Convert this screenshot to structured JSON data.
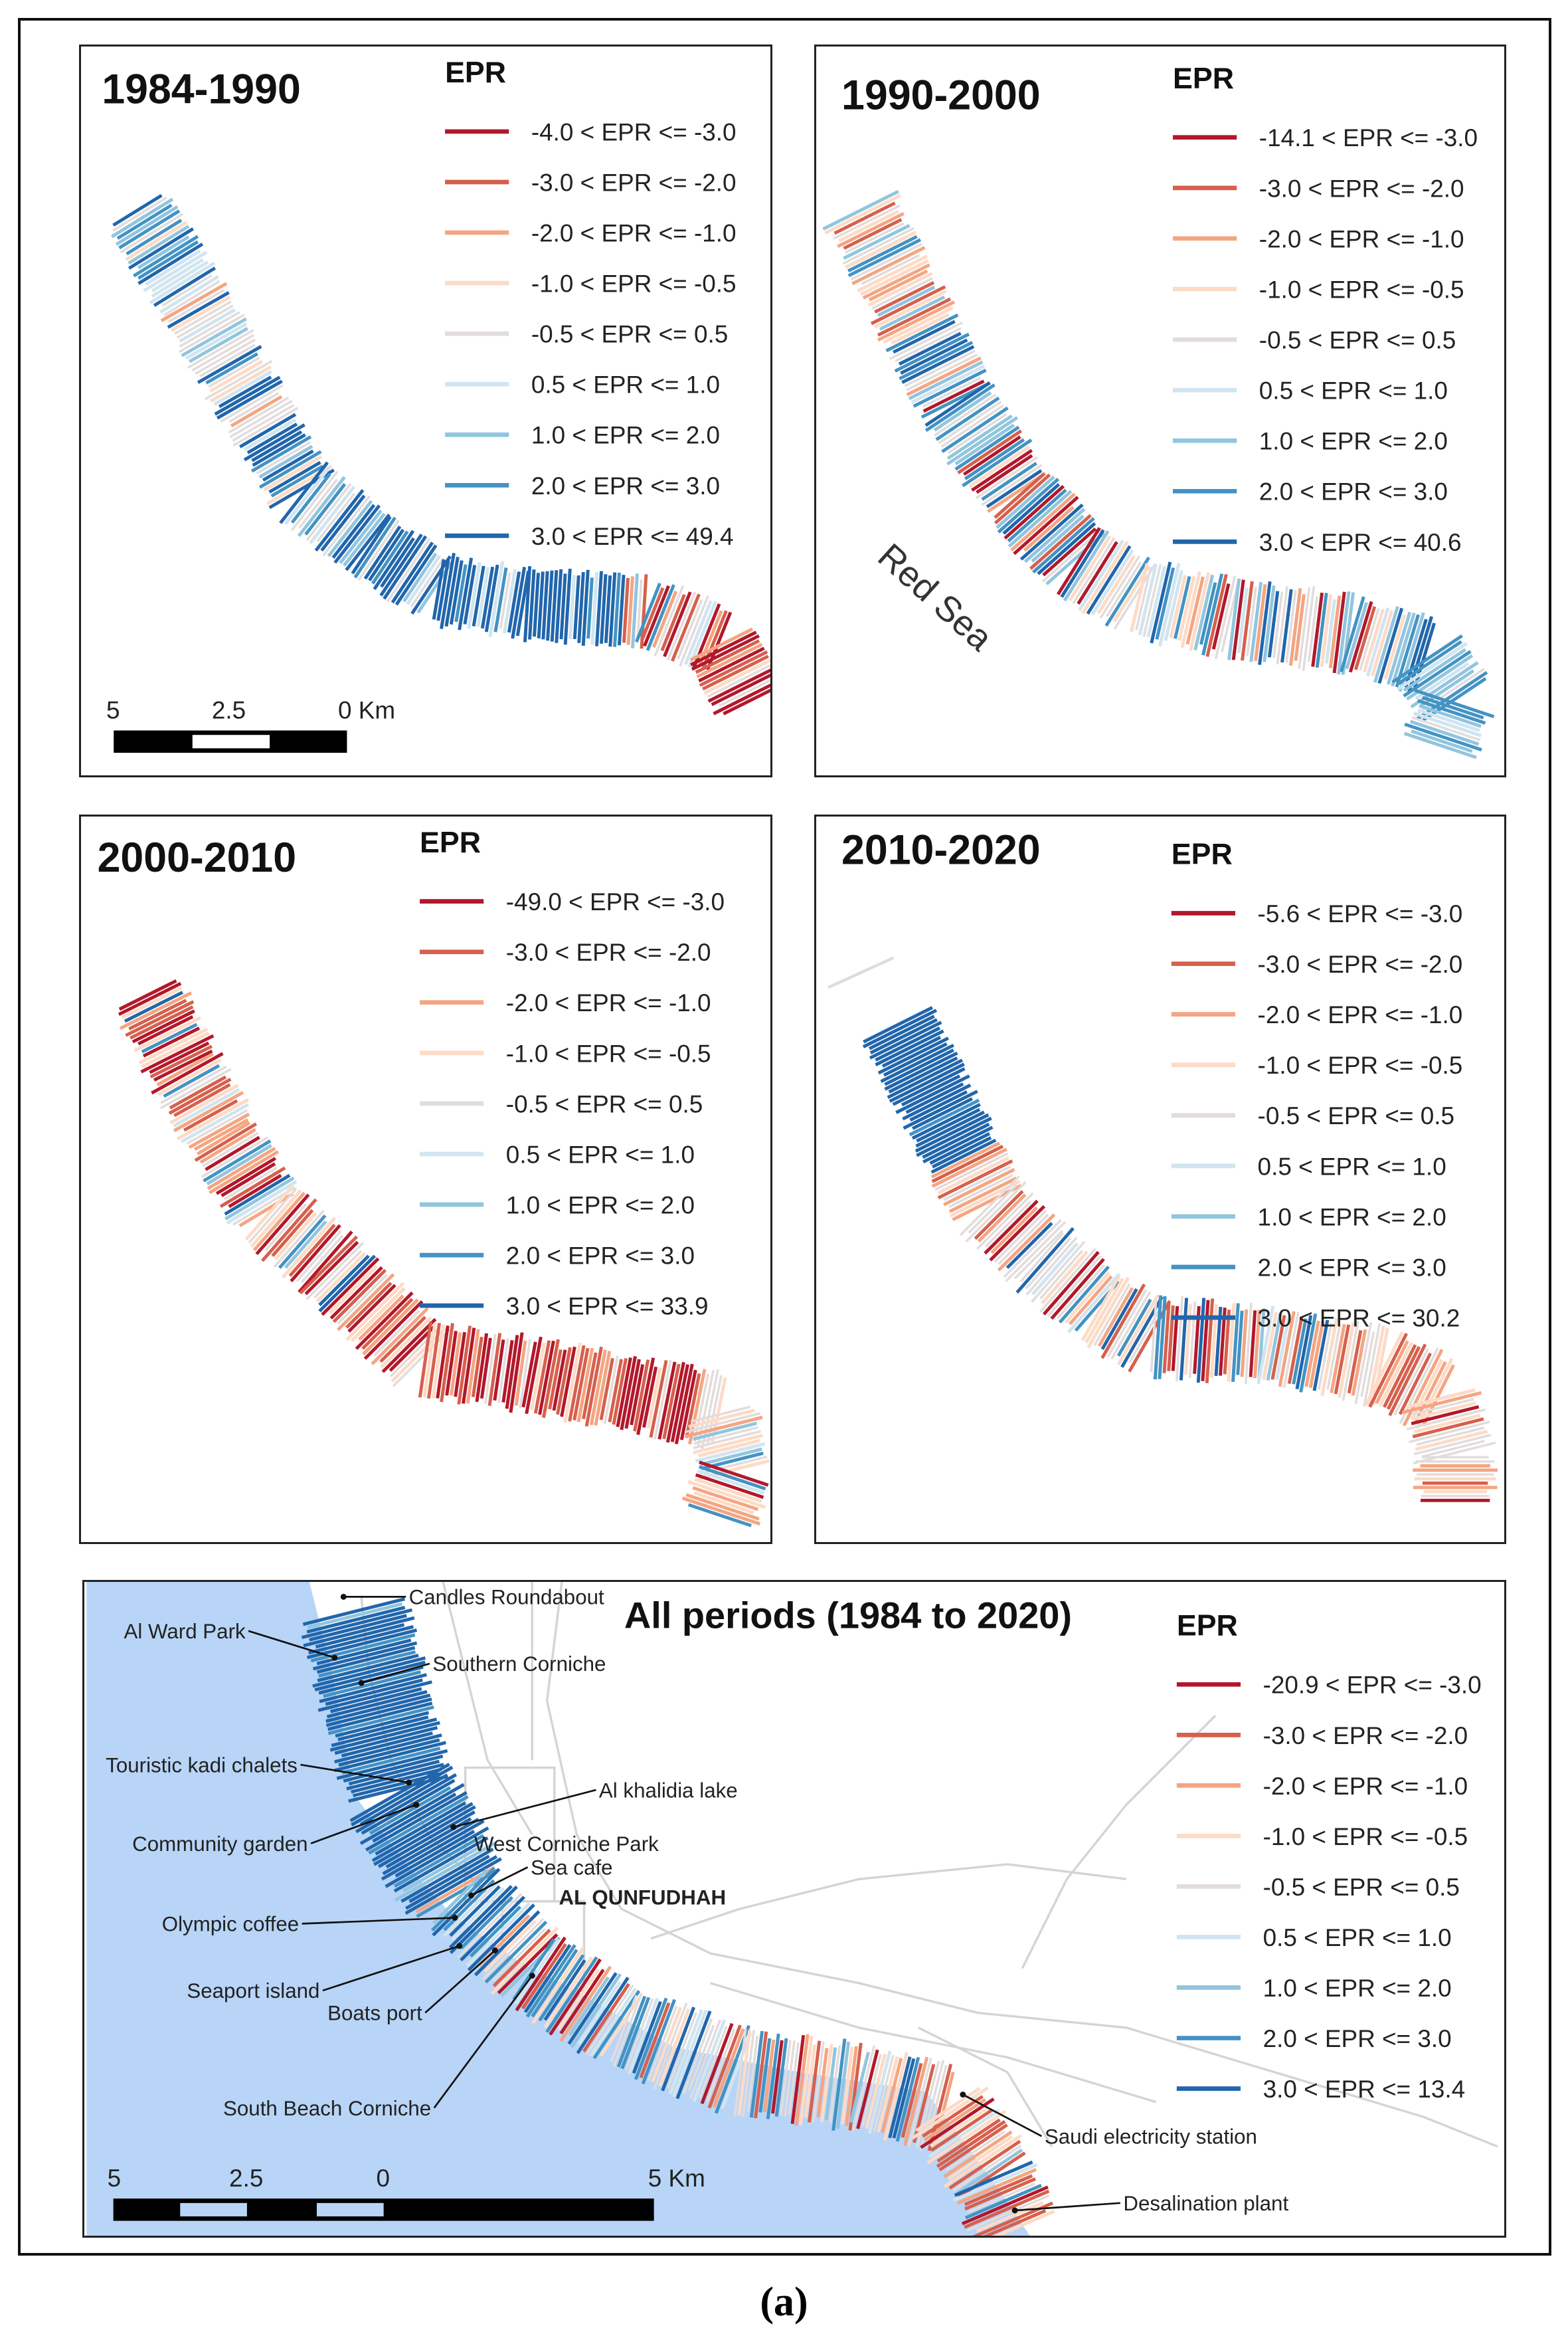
{
  "legend_colors": [
    "#b2182b",
    "#d6604d",
    "#f4a582",
    "#fddbc7",
    "#e2dcdc",
    "#d1e5f0",
    "#92c5de",
    "#4393c3",
    "#2166ac"
  ],
  "legend_title": "EPR",
  "panels": [
    {
      "title": "1984-1990",
      "legend": [
        "-4.0 < EPR <= -3.0",
        "-3.0 < EPR <= -2.0",
        "-2.0 < EPR <= -1.0",
        "-1.0 < EPR <= -0.5",
        "-0.5 < EPR <= 0.5",
        "0.5 < EPR <= 1.0",
        "1.0 < EPR <= 2.0",
        "2.0 < EPR <= 3.0",
        "3.0 < EPR <= 49.4"
      ],
      "scale": {
        "labels": [
          "5",
          "2.5",
          "0 Km"
        ]
      }
    },
    {
      "title": "1990-2000",
      "legend": [
        "-14.1 < EPR <= -3.0",
        "-3.0 < EPR <= -2.0",
        "-2.0 < EPR <= -1.0",
        "-1.0 < EPR <= -0.5",
        "-0.5 < EPR <= 0.5",
        "0.5 < EPR <= 1.0",
        "1.0 < EPR <= 2.0",
        "2.0 < EPR <= 3.0",
        "3.0 < EPR <= 40.6"
      ],
      "sea_label": "Red Sea"
    },
    {
      "title": "2000-2010",
      "legend": [
        "-49.0 < EPR <= -3.0",
        "-3.0 < EPR <= -2.0",
        "-2.0 < EPR <= -1.0",
        "-1.0 < EPR <= -0.5",
        "-0.5 < EPR <= 0.5",
        "0.5 < EPR <= 1.0",
        "1.0 < EPR <= 2.0",
        "2.0 < EPR <= 3.0",
        "3.0 < EPR <= 33.9"
      ]
    },
    {
      "title": "2010-2020",
      "legend": [
        "-5.6 < EPR <= -3.0",
        "-3.0 < EPR <= -2.0",
        "-2.0 < EPR <= -1.0",
        "-1.0 < EPR <= -0.5",
        "-0.5 < EPR <= 0.5",
        "0.5 < EPR <= 1.0",
        "1.0 < EPR <= 2.0",
        "2.0 < EPR <= 3.0",
        "3.0 < EPR <= 30.2"
      ]
    },
    {
      "title": "All periods (1984 to 2020)",
      "legend": [
        "-20.9 < EPR <= -3.0",
        "-3.0 < EPR <= -2.0",
        "-2.0 < EPR <= -1.0",
        "-1.0 < EPR <= -0.5",
        "-0.5 < EPR <= 0.5",
        "0.5 < EPR <= 1.0",
        "1.0 < EPR <= 2.0",
        "2.0 < EPR <= 3.0",
        "3.0 < EPR <= 13.4"
      ],
      "scale": {
        "labels": [
          "5",
          "2.5",
          "0",
          "5 Km"
        ]
      },
      "places": {
        "candles": "Candles Roundabout",
        "alward": "Al Ward Park",
        "southern": "Southern Corniche",
        "touristic": "Touristic kadi chalets",
        "community": "Community garden",
        "khalidia": "Al khalidia lake",
        "westcorniche": "West Corniche Park",
        "seacafe": "Sea cafe",
        "city": "AL QUNFUDHAH",
        "olympic": "Olympic coffee",
        "seaport": "Seaport island",
        "boats": "Boats port",
        "southbeach": "South Beach Corniche",
        "electricity": "Saudi electricity station",
        "desal": "Desalination plant"
      }
    }
  ],
  "caption": "(a)",
  "sea_color": "#b8d5f7"
}
